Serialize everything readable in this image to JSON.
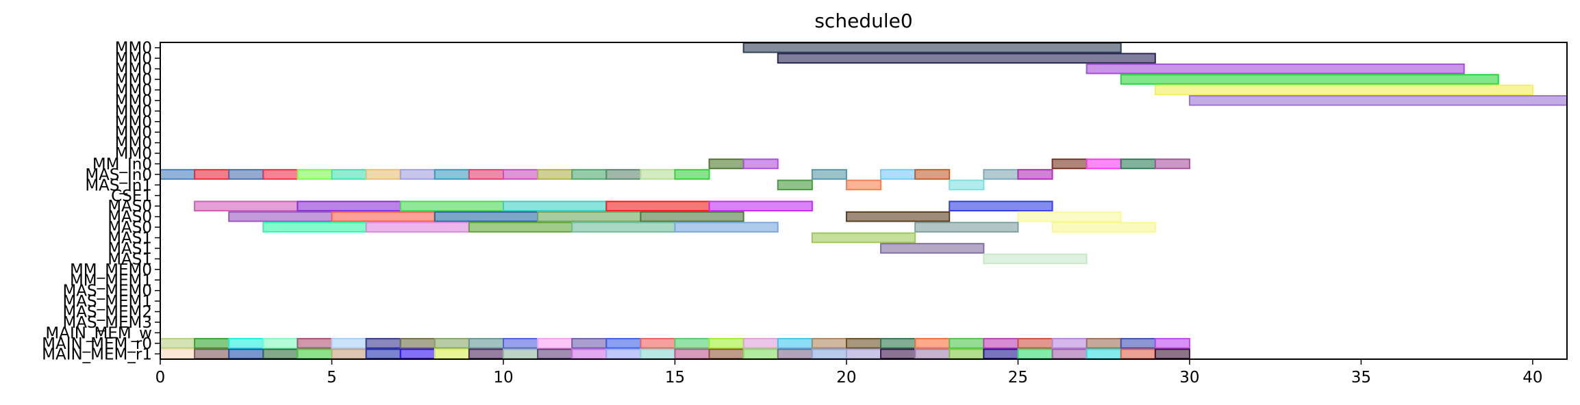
{
  "chart_data": {
    "type": "gantt",
    "title": "schedule0",
    "xlabel": "",
    "ylabel": "",
    "xlim": [
      0,
      41
    ],
    "x_ticks": [
      0,
      5,
      10,
      15,
      20,
      25,
      30,
      35,
      40
    ],
    "grid": false,
    "rows": [
      "MM0",
      "MM0",
      "MM0",
      "MM0",
      "MM0",
      "MM0",
      "MM0",
      "MM0",
      "MM0",
      "MM0",
      "MM0",
      "MM_In0",
      "MAS_In0",
      "MAS_In1",
      "CSE1",
      "MAS0",
      "MAS0",
      "MAS0",
      "MAS1",
      "MAS1",
      "MAS1",
      "MM_MEM0",
      "MM_MEM1",
      "MAS_MEM0",
      "MAS_MEM1",
      "MAS_MEM2",
      "MAS_MEM3",
      "MAIN_MEM_w",
      "MAIN_MEM_r0",
      "MAIN_MEM_r1"
    ],
    "tasks": [
      {
        "row": 0,
        "start": 17,
        "end": 28,
        "color": "#2e3f58"
      },
      {
        "row": 1,
        "start": 18,
        "end": 29,
        "color": "#2a2755"
      },
      {
        "row": 2,
        "start": 27,
        "end": 38,
        "color": "#a34fd6"
      },
      {
        "row": 3,
        "start": 28,
        "end": 39,
        "color": "#2ed63e"
      },
      {
        "row": 4,
        "start": 29,
        "end": 40,
        "color": "#f3f05c"
      },
      {
        "row": 5,
        "start": 30,
        "end": 41,
        "color": "#9a74cf"
      },
      {
        "row": 11,
        "start": 16,
        "end": 17,
        "color": "#4f7a2f"
      },
      {
        "row": 11,
        "start": 17,
        "end": 18,
        "color": "#b04fe0"
      },
      {
        "row": 11,
        "start": 26,
        "end": 27,
        "color": "#7a3320"
      },
      {
        "row": 11,
        "start": 27,
        "end": 28,
        "color": "#f63cf0"
      },
      {
        "row": 11,
        "start": 28,
        "end": 29,
        "color": "#2e7f5a"
      },
      {
        "row": 11,
        "start": 29,
        "end": 30,
        "color": "#a8539e"
      },
      {
        "row": 12,
        "start": 0,
        "end": 1,
        "color": "#4a80c0"
      },
      {
        "row": 12,
        "start": 1,
        "end": 2,
        "color": "#e82a3a"
      },
      {
        "row": 12,
        "start": 2,
        "end": 3,
        "color": "#4c6fb0"
      },
      {
        "row": 12,
        "start": 3,
        "end": 4,
        "color": "#f0304a"
      },
      {
        "row": 12,
        "start": 4,
        "end": 5,
        "color": "#7dfa50"
      },
      {
        "row": 12,
        "start": 5,
        "end": 6,
        "color": "#48e0b0"
      },
      {
        "row": 12,
        "start": 6,
        "end": 7,
        "color": "#e8c07a"
      },
      {
        "row": 12,
        "start": 7,
        "end": 8,
        "color": "#a0a0e0"
      },
      {
        "row": 12,
        "start": 8,
        "end": 9,
        "color": "#3c9cc0"
      },
      {
        "row": 12,
        "start": 9,
        "end": 10,
        "color": "#e04070"
      },
      {
        "row": 12,
        "start": 10,
        "end": 11,
        "color": "#c850c0"
      },
      {
        "row": 12,
        "start": 11,
        "end": 12,
        "color": "#b0b050"
      },
      {
        "row": 12,
        "start": 12,
        "end": 13,
        "color": "#50a870"
      },
      {
        "row": 12,
        "start": 13,
        "end": 14,
        "color": "#608870"
      },
      {
        "row": 12,
        "start": 14,
        "end": 15,
        "color": "#b8e098"
      },
      {
        "row": 12,
        "start": 15,
        "end": 16,
        "color": "#38d040"
      },
      {
        "row": 12,
        "start": 19,
        "end": 20,
        "color": "#5898a8"
      },
      {
        "row": 12,
        "start": 21,
        "end": 22,
        "color": "#78c8f8"
      },
      {
        "row": 12,
        "start": 22,
        "end": 23,
        "color": "#c06030"
      },
      {
        "row": 12,
        "start": 24,
        "end": 25,
        "color": "#80aab8"
      },
      {
        "row": 12,
        "start": 25,
        "end": 26,
        "color": "#b030b8"
      },
      {
        "row": 13,
        "start": 18,
        "end": 19,
        "color": "#4a9a40"
      },
      {
        "row": 13,
        "start": 20,
        "end": 21,
        "color": "#f88050"
      },
      {
        "row": 13,
        "start": 23,
        "end": 24,
        "color": "#80e0e0"
      },
      {
        "row": 15,
        "start": 1,
        "end": 4,
        "color": "#d060b8"
      },
      {
        "row": 15,
        "start": 4,
        "end": 7,
        "color": "#8a30d8"
      },
      {
        "row": 15,
        "start": 7,
        "end": 10,
        "color": "#48d858"
      },
      {
        "row": 15,
        "start": 10,
        "end": 13,
        "color": "#40d0c0"
      },
      {
        "row": 15,
        "start": 13,
        "end": 16,
        "color": "#f02020"
      },
      {
        "row": 15,
        "start": 16,
        "end": 19,
        "color": "#c030f0"
      },
      {
        "row": 15,
        "start": 23,
        "end": 26,
        "color": "#3040e0"
      },
      {
        "row": 16,
        "start": 2,
        "end": 5,
        "color": "#9858c0"
      },
      {
        "row": 16,
        "start": 5,
        "end": 8,
        "color": "#f86050"
      },
      {
        "row": 16,
        "start": 8,
        "end": 11,
        "color": "#2868a0"
      },
      {
        "row": 16,
        "start": 11,
        "end": 14,
        "color": "#70a860"
      },
      {
        "row": 16,
        "start": 14,
        "end": 17,
        "color": "#507840"
      },
      {
        "row": 16,
        "start": 20,
        "end": 23,
        "color": "#5a4020"
      },
      {
        "row": 16,
        "start": 25,
        "end": 28,
        "color": "#f8f8a0"
      },
      {
        "row": 17,
        "start": 3,
        "end": 6,
        "color": "#30f8a8"
      },
      {
        "row": 17,
        "start": 6,
        "end": 9,
        "color": "#e088e0"
      },
      {
        "row": 17,
        "start": 9,
        "end": 12,
        "color": "#60a838"
      },
      {
        "row": 17,
        "start": 12,
        "end": 15,
        "color": "#70c0a0"
      },
      {
        "row": 17,
        "start": 15,
        "end": 18,
        "color": "#78a8e0"
      },
      {
        "row": 17,
        "start": 22,
        "end": 25,
        "color": "#80a0a0"
      },
      {
        "row": 17,
        "start": 26,
        "end": 29,
        "color": "#f8f890"
      },
      {
        "row": 18,
        "start": 19,
        "end": 22,
        "color": "#a0c858"
      },
      {
        "row": 19,
        "start": 21,
        "end": 24,
        "color": "#8070a0"
      },
      {
        "row": 20,
        "start": 24,
        "end": 27,
        "color": "#c8e8c8"
      },
      {
        "row": 28,
        "start": 0,
        "end": 1,
        "color": "#b8d080"
      },
      {
        "row": 28,
        "start": 1,
        "end": 2,
        "color": "#30a830"
      },
      {
        "row": 28,
        "start": 2,
        "end": 3,
        "color": "#20f0e0"
      },
      {
        "row": 28,
        "start": 3,
        "end": 4,
        "color": "#80f8c0"
      },
      {
        "row": 28,
        "start": 4,
        "end": 5,
        "color": "#b05070"
      },
      {
        "row": 28,
        "start": 5,
        "end": 6,
        "color": "#a8d0f8"
      },
      {
        "row": 28,
        "start": 6,
        "end": 7,
        "color": "#383890"
      },
      {
        "row": 28,
        "start": 7,
        "end": 8,
        "color": "#70704a"
      },
      {
        "row": 28,
        "start": 8,
        "end": 9,
        "color": "#88a868"
      },
      {
        "row": 28,
        "start": 9,
        "end": 10,
        "color": "#689898"
      },
      {
        "row": 28,
        "start": 10,
        "end": 11,
        "color": "#5060e0"
      },
      {
        "row": 28,
        "start": 11,
        "end": 12,
        "color": "#f8a0f0"
      },
      {
        "row": 28,
        "start": 12,
        "end": 13,
        "color": "#7060b0"
      },
      {
        "row": 28,
        "start": 13,
        "end": 14,
        "color": "#4060e8"
      },
      {
        "row": 28,
        "start": 14,
        "end": 15,
        "color": "#f06060"
      },
      {
        "row": 28,
        "start": 15,
        "end": 16,
        "color": "#50d070"
      },
      {
        "row": 28,
        "start": 16,
        "end": 17,
        "color": "#a0f030"
      },
      {
        "row": 28,
        "start": 17,
        "end": 18,
        "color": "#e0a0d8"
      },
      {
        "row": 28,
        "start": 18,
        "end": 19,
        "color": "#40c8f0"
      },
      {
        "row": 28,
        "start": 19,
        "end": 20,
        "color": "#b08860"
      },
      {
        "row": 28,
        "start": 20,
        "end": 21,
        "color": "#6a5228"
      },
      {
        "row": 28,
        "start": 21,
        "end": 22,
        "color": "#307850"
      },
      {
        "row": 28,
        "start": 22,
        "end": 23,
        "color": "#f87038"
      },
      {
        "row": 28,
        "start": 23,
        "end": 24,
        "color": "#50c850"
      },
      {
        "row": 28,
        "start": 24,
        "end": 25,
        "color": "#c040b8"
      },
      {
        "row": 28,
        "start": 25,
        "end": 26,
        "color": "#d05040"
      },
      {
        "row": 28,
        "start": 26,
        "end": 27,
        "color": "#b888e0"
      },
      {
        "row": 28,
        "start": 27,
        "end": 28,
        "color": "#a07058"
      },
      {
        "row": 28,
        "start": 28,
        "end": 29,
        "color": "#4050b8"
      },
      {
        "row": 28,
        "start": 29,
        "end": 30,
        "color": "#c048f0"
      },
      {
        "row": 29,
        "start": 0,
        "end": 1,
        "color": "#f8d8b8"
      },
      {
        "row": 29,
        "start": 1,
        "end": 2,
        "color": "#805858"
      },
      {
        "row": 29,
        "start": 2,
        "end": 3,
        "color": "#2050b0"
      },
      {
        "row": 29,
        "start": 3,
        "end": 4,
        "color": "#307040"
      },
      {
        "row": 29,
        "start": 4,
        "end": 5,
        "color": "#40d040"
      },
      {
        "row": 29,
        "start": 5,
        "end": 6,
        "color": "#c8a080"
      },
      {
        "row": 29,
        "start": 6,
        "end": 7,
        "color": "#2030b0"
      },
      {
        "row": 29,
        "start": 7,
        "end": 8,
        "color": "#3010f0"
      },
      {
        "row": 29,
        "start": 8,
        "end": 9,
        "color": "#d8f050"
      },
      {
        "row": 29,
        "start": 9,
        "end": 10,
        "color": "#502860"
      },
      {
        "row": 29,
        "start": 10,
        "end": 11,
        "color": "#90b8a0"
      },
      {
        "row": 29,
        "start": 11,
        "end": 12,
        "color": "#604078"
      },
      {
        "row": 29,
        "start": 12,
        "end": 13,
        "color": "#d070e8"
      },
      {
        "row": 29,
        "start": 13,
        "end": 14,
        "color": "#98a8f8"
      },
      {
        "row": 29,
        "start": 14,
        "end": 15,
        "color": "#88d8d0"
      },
      {
        "row": 29,
        "start": 15,
        "end": 16,
        "color": "#c05890"
      },
      {
        "row": 29,
        "start": 16,
        "end": 17,
        "color": "#905838"
      },
      {
        "row": 29,
        "start": 17,
        "end": 18,
        "color": "#80e060"
      },
      {
        "row": 29,
        "start": 18,
        "end": 19,
        "color": "#806890"
      },
      {
        "row": 29,
        "start": 19,
        "end": 20,
        "color": "#88a8e0"
      },
      {
        "row": 29,
        "start": 20,
        "end": 21,
        "color": "#a8a0d8"
      },
      {
        "row": 29,
        "start": 21,
        "end": 22,
        "color": "#401850"
      },
      {
        "row": 29,
        "start": 22,
        "end": 23,
        "color": "#a080b0"
      },
      {
        "row": 29,
        "start": 23,
        "end": 24,
        "color": "#80c840"
      },
      {
        "row": 29,
        "start": 24,
        "end": 25,
        "color": "#201890"
      },
      {
        "row": 29,
        "start": 25,
        "end": 26,
        "color": "#30e070"
      },
      {
        "row": 29,
        "start": 26,
        "end": 27,
        "color": "#a060a8"
      },
      {
        "row": 29,
        "start": 27,
        "end": 28,
        "color": "#30e0e0"
      },
      {
        "row": 29,
        "start": 28,
        "end": 29,
        "color": "#e06048"
      },
      {
        "row": 29,
        "start": 29,
        "end": 30,
        "color": "#401838"
      }
    ]
  }
}
